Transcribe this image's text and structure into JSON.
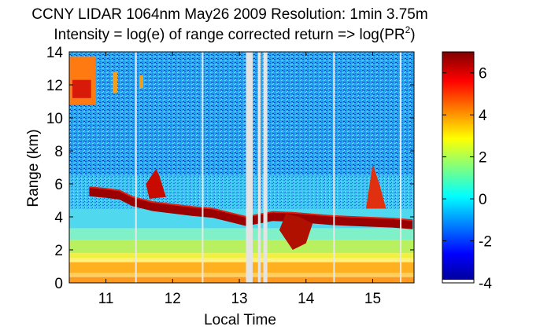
{
  "chart_data": {
    "type": "heatmap",
    "title_line1": "CCNY LIDAR 1064nm May26 2009 Resolution: 1min 3.75m",
    "title_line2_prefix": "Intensity = log(e) of range corrected return => log(PR",
    "title_line2_sup": "2",
    "title_line2_suffix": ")",
    "xlabel": "Local Time",
    "ylabel": "Range (km)",
    "xlim": [
      10.45,
      15.62
    ],
    "ylim": [
      0,
      14
    ],
    "xticks": [
      11,
      12,
      13,
      14,
      15
    ],
    "yticks": [
      0,
      2,
      4,
      6,
      8,
      10,
      12,
      14
    ],
    "colorbar": {
      "clim": [
        -4,
        7
      ],
      "ticks": [
        -4,
        -2,
        0,
        2,
        4,
        6
      ],
      "colormap": "jet"
    },
    "layer_top_km": {
      "x": [
        10.75,
        11.0,
        11.2,
        11.4,
        11.7,
        12.0,
        12.3,
        12.6,
        12.9,
        13.1,
        13.5,
        13.8,
        14.1,
        14.4,
        14.7,
        15.0,
        15.3,
        15.6
      ],
      "y": [
        5.8,
        5.7,
        5.6,
        5.2,
        4.9,
        4.75,
        4.6,
        4.5,
        4.2,
        4.0,
        4.3,
        4.25,
        4.15,
        4.05,
        4.0,
        3.95,
        3.9,
        3.8
      ]
    },
    "data_gaps_hours": [
      [
        13.1,
        13.2
      ],
      [
        13.28,
        13.32
      ],
      [
        13.36,
        13.42
      ]
    ],
    "thin_gaps_hours": [
      11.45,
      12.45,
      14.42,
      15.42
    ]
  }
}
